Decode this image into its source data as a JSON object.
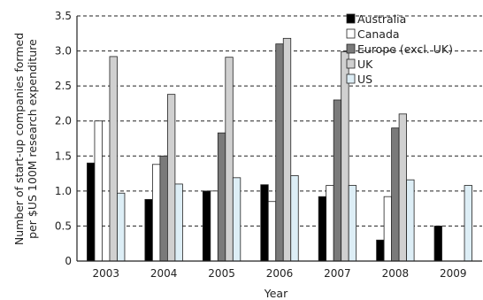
{
  "chart_data": {
    "type": "bar",
    "categories": [
      "2003",
      "2004",
      "2005",
      "2006",
      "2007",
      "2008",
      "2009"
    ],
    "xlabel": "Year",
    "ylabel_lines": [
      "Number of start-up companies formed",
      "per $US 100M research expenditure"
    ],
    "ylim": [
      0,
      3.5
    ],
    "yticks": [
      "0",
      "0.5",
      "1.0",
      "1.5",
      "2.0",
      "2.5",
      "3.0",
      "3.5"
    ],
    "grid": "horizontal dashed",
    "legend_position": "top-right",
    "series": [
      {
        "name": "Australia",
        "color": "#000000",
        "values": [
          1.4,
          0.88,
          1.0,
          1.09,
          0.92,
          0.3,
          0.5
        ]
      },
      {
        "name": "Canada",
        "color": "#ffffff",
        "values": [
          2.0,
          1.38,
          1.0,
          0.85,
          1.08,
          0.92,
          null
        ]
      },
      {
        "name": "Europe (excl. UK)",
        "color": "#7a7a7a",
        "values": [
          null,
          1.5,
          1.83,
          3.1,
          2.3,
          1.9,
          null
        ]
      },
      {
        "name": "UK",
        "color": "#d0d0d0",
        "values": [
          2.92,
          2.38,
          2.91,
          3.18,
          2.99,
          2.1,
          null
        ]
      },
      {
        "name": "US",
        "color": "#ddeef6",
        "values": [
          0.97,
          1.1,
          1.19,
          1.22,
          1.08,
          1.16,
          1.08
        ]
      }
    ]
  }
}
